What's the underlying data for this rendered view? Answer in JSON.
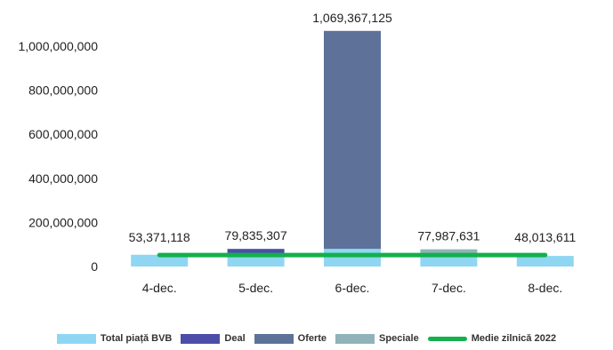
{
  "chart_data": {
    "type": "bar",
    "stacked": true,
    "categories": [
      "4-dec.",
      "5-dec.",
      "6-dec.",
      "7-dec.",
      "8-dec."
    ],
    "series": [
      {
        "name": "Total piață BVB",
        "color": "#8fd6f3",
        "values": [
          53371118,
          50000000,
          80000000,
          50000000,
          48013611
        ]
      },
      {
        "name": "Deal",
        "color": "#4b4da8",
        "values": [
          0,
          29835307,
          0,
          0,
          0
        ]
      },
      {
        "name": "Oferte",
        "color": "#5d7199",
        "values": [
          0,
          0,
          989367125,
          0,
          0
        ]
      },
      {
        "name": "Speciale",
        "color": "#8fb3b9",
        "values": [
          0,
          0,
          0,
          27987631,
          0
        ]
      }
    ],
    "line_series": {
      "name": "Medie zilnică 2022",
      "color": "#13b04b",
      "value": 52000000
    },
    "totals": [
      "53,371,118",
      "79,835,307",
      "1,069,367,125",
      "77,987,631",
      "48,013,611"
    ],
    "total_values": [
      53371118,
      79835307,
      1069367125,
      77987631,
      48013611
    ],
    "yticks": [
      0,
      200000000,
      400000000,
      600000000,
      800000000,
      1000000000
    ],
    "ytick_labels": [
      "0",
      "200,000,000",
      "400,000,000",
      "600,000,000",
      "800,000,000",
      "1,000,000,000"
    ],
    "ylim": [
      0,
      1100000000
    ],
    "grid": false,
    "legend_position": "bottom"
  }
}
